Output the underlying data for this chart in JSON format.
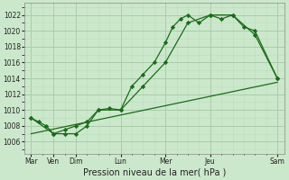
{
  "bg_color": "#cce8cc",
  "grid_color_major": "#aaccaa",
  "grid_color_minor": "#bbddbb",
  "line_color": "#1a6b1a",
  "marker_color": "#1a6b1a",
  "xlabel": "Pression niveau de la mer( hPa )",
  "xlabel_fontsize": 7,
  "tick_fontsize": 5.5,
  "ylim": [
    1004.5,
    1023.5
  ],
  "yticks": [
    1006,
    1008,
    1010,
    1012,
    1014,
    1016,
    1018,
    1020,
    1022
  ],
  "xlim": [
    -0.3,
    11.3
  ],
  "x_tick_positions": [
    0,
    1,
    2,
    4,
    6,
    8,
    11
  ],
  "x_tick_labels": [
    "Mar",
    "Ven",
    "Dim",
    "Lun",
    "Mer",
    "Jeu",
    "Sam"
  ],
  "line1_x": [
    0,
    0.33,
    0.67,
    1,
    1.5,
    2,
    2.5,
    3,
    3.5,
    4,
    4.5,
    5,
    5.5,
    6,
    6.33,
    6.67,
    7,
    7.5,
    8,
    8.5,
    9,
    9.5,
    10,
    11
  ],
  "line1_y": [
    1009,
    1008.5,
    1008,
    1007,
    1007,
    1007,
    1008,
    1010,
    1010.2,
    1010,
    1013,
    1014.5,
    1016,
    1018.5,
    1020.5,
    1021.5,
    1022,
    1021,
    1022,
    1021.5,
    1022,
    1020.5,
    1020,
    1014
  ],
  "line2_x": [
    0,
    1,
    1.5,
    2,
    2.5,
    3,
    4,
    5,
    6,
    7,
    8,
    9,
    10,
    11
  ],
  "line2_y": [
    1009,
    1007,
    1007.5,
    1008,
    1008.5,
    1010,
    1010,
    1013,
    1016,
    1021,
    1022,
    1022,
    1019.5,
    1014
  ],
  "line3_x": [
    0,
    11
  ],
  "line3_y": [
    1007,
    1013.5
  ]
}
